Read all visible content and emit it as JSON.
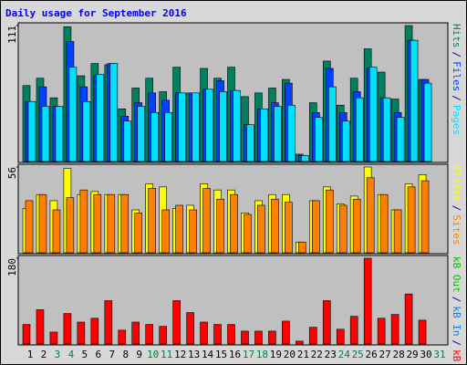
{
  "chart_data": [
    {
      "type": "bar",
      "title": "Daily usage for September 2016",
      "title_color": "#0000ff",
      "ylim": [
        0,
        111
      ],
      "yticks": [
        111
      ],
      "legend_separator": "/",
      "legend_reversed": false,
      "series": [
        {
          "name": "Hits",
          "color": "#008060",
          "values": [
            62,
            68,
            52,
            110,
            70,
            80,
            79,
            43,
            60,
            68,
            57,
            77,
            56,
            76,
            68,
            77,
            53,
            56,
            60,
            67,
            6,
            48,
            82,
            46,
            68,
            92,
            73,
            51,
            111,
            67,
            null
          ]
        },
        {
          "name": "Files",
          "color": "#0040ff",
          "values": [
            49,
            61,
            45,
            98,
            61,
            70,
            80,
            37,
            48,
            56,
            50,
            56,
            56,
            59,
            66,
            58,
            30,
            43,
            48,
            64,
            5,
            40,
            76,
            40,
            57,
            76,
            52,
            40,
            99,
            67,
            null
          ]
        },
        {
          "name": "Pages",
          "color": "#00e0ff",
          "values": [
            49,
            45,
            45,
            77,
            49,
            71,
            80,
            33,
            45,
            40,
            40,
            56,
            56,
            59,
            57,
            58,
            30,
            43,
            45,
            46,
            5,
            36,
            61,
            33,
            52,
            77,
            52,
            36,
            99,
            64,
            null
          ]
        }
      ]
    },
    {
      "type": "bar",
      "ylim": [
        0,
        56
      ],
      "yticks": [
        56
      ],
      "legend_separator": "/",
      "legend_reversed": false,
      "series": [
        {
          "name": "Visits",
          "color": "#ffff00",
          "values": [
            29,
            38,
            34,
            55,
            38,
            40,
            38,
            38,
            28,
            45,
            43,
            29,
            31,
            45,
            41,
            41,
            26,
            34,
            38,
            38,
            7,
            34,
            43,
            32,
            37,
            56,
            38,
            28,
            45,
            51,
            null
          ]
        },
        {
          "name": "Sites",
          "color": "#ff8000",
          "values": [
            34,
            38,
            28,
            36,
            41,
            38,
            38,
            38,
            26,
            42,
            28,
            31,
            28,
            42,
            35,
            38,
            25,
            31,
            35,
            33,
            7,
            34,
            41,
            31,
            35,
            49,
            38,
            28,
            43,
            47,
            null
          ]
        }
      ]
    },
    {
      "type": "bar",
      "ylim": [
        0,
        180
      ],
      "yticks": [
        180
      ],
      "legend_separator": "/",
      "legend_reversed": true,
      "categories": [
        1,
        2,
        3,
        4,
        5,
        6,
        7,
        8,
        9,
        10,
        11,
        12,
        13,
        14,
        15,
        16,
        17,
        18,
        19,
        20,
        21,
        22,
        23,
        24,
        25,
        26,
        27,
        28,
        29,
        30,
        31
      ],
      "category_colors": [
        "#000000",
        "#000000",
        "#008040",
        "#008040",
        "#000000",
        "#000000",
        "#000000",
        "#000000",
        "#000000",
        "#008040",
        "#008040",
        "#000000",
        "#000000",
        "#000000",
        "#000000",
        "#000000",
        "#008040",
        "#008040",
        "#000000",
        "#000000",
        "#000000",
        "#000000",
        "#000000",
        "#008040",
        "#008040",
        "#000000",
        "#000000",
        "#000000",
        "#000000",
        "#000000",
        "#008040"
      ],
      "series": [
        {
          "name": "kB F",
          "color": "#ff0000",
          "values": [
            41,
            72,
            25,
            64,
            46,
            54,
            91,
            29,
            46,
            41,
            37,
            91,
            66,
            46,
            41,
            41,
            27,
            27,
            27,
            48,
            6,
            35,
            91,
            31,
            58,
            180,
            54,
            62,
            105,
            50,
            null
          ]
        },
        {
          "name": "kB In",
          "color": "#0080ff",
          "values": [
            0,
            0,
            0,
            0,
            0,
            0,
            0,
            0,
            0,
            0,
            0,
            0,
            0,
            0,
            0,
            0,
            0,
            0,
            0,
            0,
            0,
            0,
            0,
            0,
            0,
            0,
            0,
            0,
            0,
            0,
            null
          ]
        },
        {
          "name": "kB Out",
          "color": "#00c000",
          "values": [
            0,
            0,
            0,
            0,
            0,
            0,
            0,
            0,
            0,
            0,
            0,
            0,
            0,
            0,
            0,
            0,
            0,
            0,
            0,
            0,
            0,
            0,
            0,
            0,
            0,
            0,
            0,
            0,
            0,
            0,
            null
          ]
        }
      ]
    }
  ]
}
